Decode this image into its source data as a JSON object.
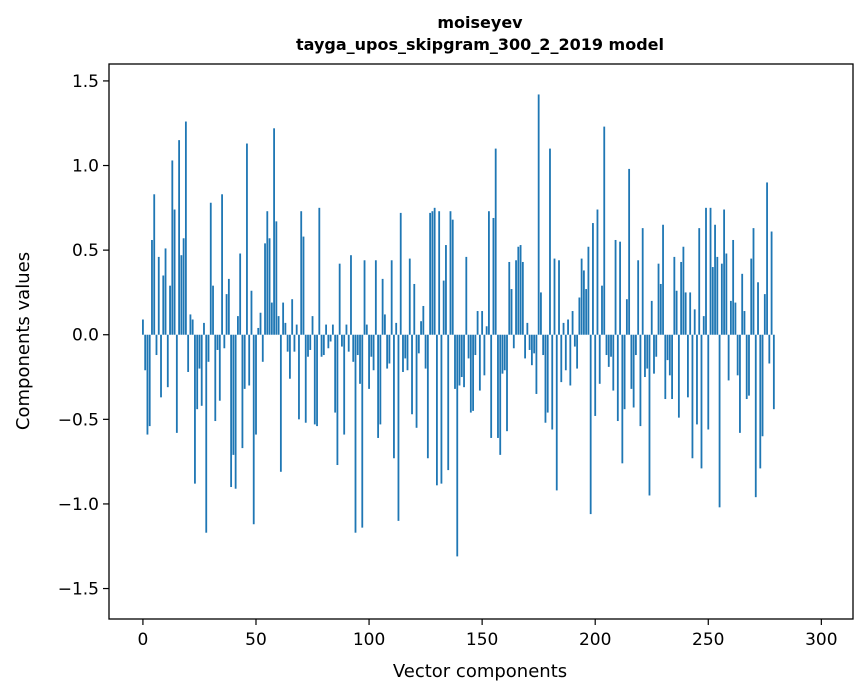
{
  "chart_data": {
    "type": "bar",
    "title_line1": "moiseyev",
    "title_line2": "tayga_upos_skipgram_300_2_2019 model",
    "xlabel": "Vector components",
    "ylabel": "Components values",
    "xlim": [
      -15,
      314
    ],
    "ylim": [
      -1.68,
      1.6
    ],
    "xticks": [
      0,
      50,
      100,
      150,
      200,
      250,
      300
    ],
    "xtick_labels": [
      "0",
      "50",
      "100",
      "150",
      "200",
      "250",
      "300"
    ],
    "yticks": [
      -1.5,
      -1.0,
      -0.5,
      0.0,
      0.5,
      1.0,
      1.5
    ],
    "ytick_labels": [
      "−1.5",
      "−1.0",
      "−0.5",
      "0.0",
      "0.5",
      "1.0",
      "1.5"
    ],
    "bar_color": "#1f77b4",
    "grid": false,
    "values": [
      0.09,
      -0.21,
      -0.59,
      -0.54,
      0.56,
      0.83,
      -0.12,
      0.46,
      -0.37,
      0.35,
      0.51,
      -0.31,
      0.29,
      1.03,
      0.74,
      -0.58,
      1.15,
      0.47,
      0.57,
      1.26,
      -0.22,
      0.12,
      0.09,
      -0.88,
      -0.44,
      -0.2,
      -0.42,
      0.07,
      -1.17,
      -0.16,
      0.78,
      0.29,
      -0.51,
      -0.09,
      -0.39,
      0.83,
      -0.08,
      0.24,
      0.33,
      -0.9,
      -0.71,
      -0.91,
      0.11,
      0.48,
      -0.67,
      -0.32,
      1.13,
      -0.3,
      0.26,
      -1.12,
      -0.59,
      0.04,
      0.13,
      -0.16,
      0.54,
      0.73,
      0.57,
      0.19,
      1.22,
      0.67,
      0.11,
      -0.81,
      0.19,
      0.07,
      -0.1,
      -0.26,
      0.21,
      -0.1,
      0.06,
      -0.5,
      0.73,
      0.58,
      -0.52,
      -0.13,
      -0.09,
      0.11,
      -0.53,
      -0.54,
      0.75,
      -0.13,
      -0.12,
      0.06,
      -0.08,
      -0.04,
      0.06,
      -0.46,
      -0.77,
      0.42,
      -0.07,
      -0.59,
      0.06,
      -0.1,
      0.47,
      -0.16,
      -1.17,
      -0.12,
      -0.29,
      -1.14,
      0.44,
      0.06,
      -0.32,
      -0.13,
      -0.21,
      0.44,
      -0.61,
      -0.53,
      0.33,
      0.12,
      -0.2,
      -0.17,
      0.44,
      -0.73,
      0.07,
      -1.1,
      0.72,
      -0.22,
      -0.14,
      -0.21,
      0.45,
      -0.47,
      0.3,
      -0.55,
      -0.11,
      0.08,
      0.17,
      -0.2,
      -0.73,
      0.72,
      0.73,
      0.75,
      -0.89,
      0.73,
      -0.88,
      0.32,
      0.53,
      -0.8,
      0.73,
      0.68,
      -0.32,
      -1.31,
      -0.3,
      -0.25,
      -0.31,
      0.46,
      -0.14,
      -0.46,
      -0.45,
      -0.12,
      0.14,
      -0.33,
      0.14,
      -0.24,
      0.05,
      0.73,
      -0.61,
      0.69,
      1.1,
      -0.61,
      -0.71,
      -0.23,
      -0.21,
      -0.57,
      0.43,
      0.27,
      -0.08,
      0.44,
      0.52,
      0.53,
      0.43,
      -0.14,
      0.07,
      -0.09,
      -0.18,
      -0.11,
      -0.35,
      1.42,
      0.25,
      -0.12,
      -0.52,
      -0.46,
      1.1,
      -0.56,
      0.45,
      -0.92,
      0.44,
      -0.28,
      0.07,
      -0.21,
      0.09,
      -0.3,
      0.14,
      -0.07,
      -0.2,
      0.22,
      0.45,
      0.38,
      0.27,
      0.52,
      -1.06,
      0.66,
      -0.48,
      0.74,
      -0.29,
      0.29,
      1.23,
      -0.12,
      -0.19,
      -0.13,
      -0.33,
      0.56,
      -0.51,
      0.55,
      -0.76,
      -0.44,
      0.21,
      0.98,
      -0.32,
      -0.43,
      -0.12,
      0.44,
      -0.54,
      0.63,
      -0.25,
      -0.2,
      -0.95,
      0.2,
      -0.23,
      -0.13,
      0.42,
      0.3,
      0.65,
      -0.38,
      -0.15,
      -0.24,
      -0.38,
      0.46,
      0.26,
      -0.49,
      0.43,
      0.52,
      0.25,
      -0.37,
      0.25,
      -0.73,
      0.15,
      -0.53,
      0.63,
      -0.79,
      0.11,
      0.75,
      -0.56,
      0.75,
      0.4,
      0.65,
      0.46,
      -1.02,
      0.42,
      0.74,
      0.48,
      -0.27,
      0.2,
      0.56,
      0.19,
      -0.24,
      -0.58,
      0.36,
      0.14,
      -0.38,
      -0.36,
      0.45,
      0.63,
      -0.96,
      0.31,
      -0.79,
      -0.6,
      0.24,
      0.9,
      -0.17,
      0.61,
      -0.44
    ]
  }
}
